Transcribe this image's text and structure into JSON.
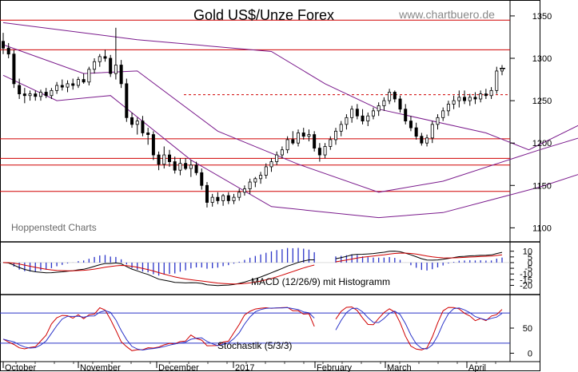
{
  "chart_data": {
    "type": "candlestick",
    "title": "Gold US$/Unze Forex",
    "watermark": "www.chartbuero.de",
    "source_label": "Hoppenstedt Charts",
    "x_labels": [
      "October",
      "November",
      "December",
      "2017",
      "February",
      "March",
      "April"
    ],
    "price_axis": {
      "ticks": [
        1100,
        1150,
        1200,
        1250,
        1300,
        1350
      ],
      "range": [
        1090,
        1365
      ],
      "resistance_lines": [
        1345,
        1310,
        1205,
        1182,
        1174,
        1143
      ],
      "dashed_line": 1257
    },
    "candles": [
      {
        "o": 1320,
        "h": 1330,
        "l": 1305,
        "c": 1312
      },
      {
        "o": 1312,
        "h": 1318,
        "l": 1300,
        "c": 1305
      },
      {
        "o": 1305,
        "h": 1310,
        "l": 1265,
        "c": 1270
      },
      {
        "o": 1268,
        "h": 1276,
        "l": 1252,
        "c": 1258
      },
      {
        "o": 1258,
        "h": 1265,
        "l": 1247,
        "c": 1256
      },
      {
        "o": 1256,
        "h": 1262,
        "l": 1250,
        "c": 1258
      },
      {
        "o": 1258,
        "h": 1262,
        "l": 1250,
        "c": 1255
      },
      {
        "o": 1255,
        "h": 1263,
        "l": 1250,
        "c": 1260
      },
      {
        "o": 1260,
        "h": 1265,
        "l": 1253,
        "c": 1256
      },
      {
        "o": 1256,
        "h": 1265,
        "l": 1252,
        "c": 1262
      },
      {
        "o": 1262,
        "h": 1272,
        "l": 1258,
        "c": 1268
      },
      {
        "o": 1268,
        "h": 1275,
        "l": 1262,
        "c": 1266
      },
      {
        "o": 1266,
        "h": 1274,
        "l": 1260,
        "c": 1270
      },
      {
        "o": 1270,
        "h": 1276,
        "l": 1263,
        "c": 1268
      },
      {
        "o": 1268,
        "h": 1278,
        "l": 1265,
        "c": 1275
      },
      {
        "o": 1275,
        "h": 1282,
        "l": 1270,
        "c": 1272
      },
      {
        "o": 1272,
        "h": 1290,
        "l": 1268,
        "c": 1287
      },
      {
        "o": 1287,
        "h": 1300,
        "l": 1282,
        "c": 1296
      },
      {
        "o": 1296,
        "h": 1305,
        "l": 1290,
        "c": 1302
      },
      {
        "o": 1302,
        "h": 1310,
        "l": 1296,
        "c": 1300
      },
      {
        "o": 1300,
        "h": 1304,
        "l": 1278,
        "c": 1282
      },
      {
        "o": 1282,
        "h": 1336,
        "l": 1275,
        "c": 1292
      },
      {
        "o": 1292,
        "h": 1298,
        "l": 1265,
        "c": 1270
      },
      {
        "o": 1270,
        "h": 1276,
        "l": 1225,
        "c": 1230
      },
      {
        "o": 1230,
        "h": 1236,
        "l": 1218,
        "c": 1222
      },
      {
        "o": 1222,
        "h": 1230,
        "l": 1210,
        "c": 1226
      },
      {
        "o": 1226,
        "h": 1232,
        "l": 1208,
        "c": 1212
      },
      {
        "o": 1212,
        "h": 1218,
        "l": 1198,
        "c": 1210
      },
      {
        "o": 1210,
        "h": 1214,
        "l": 1180,
        "c": 1186
      },
      {
        "o": 1186,
        "h": 1190,
        "l": 1168,
        "c": 1175
      },
      {
        "o": 1175,
        "h": 1196,
        "l": 1170,
        "c": 1186
      },
      {
        "o": 1186,
        "h": 1192,
        "l": 1172,
        "c": 1178
      },
      {
        "o": 1178,
        "h": 1184,
        "l": 1164,
        "c": 1168
      },
      {
        "o": 1168,
        "h": 1182,
        "l": 1162,
        "c": 1176
      },
      {
        "o": 1176,
        "h": 1182,
        "l": 1168,
        "c": 1170
      },
      {
        "o": 1170,
        "h": 1180,
        "l": 1160,
        "c": 1174
      },
      {
        "o": 1174,
        "h": 1178,
        "l": 1162,
        "c": 1165
      },
      {
        "o": 1165,
        "h": 1170,
        "l": 1145,
        "c": 1150
      },
      {
        "o": 1150,
        "h": 1154,
        "l": 1124,
        "c": 1130
      },
      {
        "o": 1130,
        "h": 1140,
        "l": 1125,
        "c": 1136
      },
      {
        "o": 1136,
        "h": 1142,
        "l": 1128,
        "c": 1132
      },
      {
        "o": 1132,
        "h": 1140,
        "l": 1126,
        "c": 1138
      },
      {
        "o": 1138,
        "h": 1142,
        "l": 1128,
        "c": 1132
      },
      {
        "o": 1132,
        "h": 1140,
        "l": 1128,
        "c": 1136
      },
      {
        "o": 1136,
        "h": 1146,
        "l": 1132,
        "c": 1142
      },
      {
        "o": 1142,
        "h": 1150,
        "l": 1138,
        "c": 1146
      },
      {
        "o": 1146,
        "h": 1158,
        "l": 1140,
        "c": 1154
      },
      {
        "o": 1154,
        "h": 1160,
        "l": 1148,
        "c": 1158
      },
      {
        "o": 1158,
        "h": 1166,
        "l": 1152,
        "c": 1162
      },
      {
        "o": 1162,
        "h": 1176,
        "l": 1158,
        "c": 1172
      },
      {
        "o": 1172,
        "h": 1182,
        "l": 1166,
        "c": 1178
      },
      {
        "o": 1178,
        "h": 1190,
        "l": 1174,
        "c": 1186
      },
      {
        "o": 1186,
        "h": 1196,
        "l": 1182,
        "c": 1192
      },
      {
        "o": 1192,
        "h": 1208,
        "l": 1188,
        "c": 1204
      },
      {
        "o": 1204,
        "h": 1214,
        "l": 1198,
        "c": 1200
      },
      {
        "o": 1200,
        "h": 1216,
        "l": 1196,
        "c": 1212
      },
      {
        "o": 1212,
        "h": 1218,
        "l": 1204,
        "c": 1208
      },
      {
        "o": 1208,
        "h": 1216,
        "l": 1202,
        "c": 1210
      },
      {
        "o": 1210,
        "h": 1214,
        "l": 1190,
        "c": 1194
      },
      {
        "o": 1194,
        "h": 1200,
        "l": 1178,
        "c": 1186
      },
      {
        "o": 1186,
        "h": 1200,
        "l": 1182,
        "c": 1196
      },
      {
        "o": 1196,
        "h": 1208,
        "l": 1192,
        "c": 1204
      },
      {
        "o": 1204,
        "h": 1218,
        "l": 1198,
        "c": 1214
      },
      {
        "o": 1214,
        "h": 1226,
        "l": 1208,
        "c": 1222
      },
      {
        "o": 1222,
        "h": 1234,
        "l": 1216,
        "c": 1230
      },
      {
        "o": 1230,
        "h": 1244,
        "l": 1224,
        "c": 1240
      },
      {
        "o": 1240,
        "h": 1246,
        "l": 1228,
        "c": 1232
      },
      {
        "o": 1232,
        "h": 1240,
        "l": 1222,
        "c": 1226
      },
      {
        "o": 1226,
        "h": 1236,
        "l": 1220,
        "c": 1232
      },
      {
        "o": 1232,
        "h": 1242,
        "l": 1228,
        "c": 1238
      },
      {
        "o": 1238,
        "h": 1248,
        "l": 1232,
        "c": 1244
      },
      {
        "o": 1244,
        "h": 1254,
        "l": 1238,
        "c": 1250
      },
      {
        "o": 1250,
        "h": 1264,
        "l": 1246,
        "c": 1260
      },
      {
        "o": 1260,
        "h": 1262,
        "l": 1248,
        "c": 1252
      },
      {
        "o": 1252,
        "h": 1256,
        "l": 1236,
        "c": 1240
      },
      {
        "o": 1240,
        "h": 1246,
        "l": 1222,
        "c": 1226
      },
      {
        "o": 1226,
        "h": 1232,
        "l": 1214,
        "c": 1218
      },
      {
        "o": 1218,
        "h": 1224,
        "l": 1204,
        "c": 1208
      },
      {
        "o": 1208,
        "h": 1212,
        "l": 1197,
        "c": 1200
      },
      {
        "o": 1200,
        "h": 1210,
        "l": 1196,
        "c": 1206
      },
      {
        "o": 1206,
        "h": 1226,
        "l": 1200,
        "c": 1222
      },
      {
        "o": 1222,
        "h": 1234,
        "l": 1216,
        "c": 1230
      },
      {
        "o": 1230,
        "h": 1242,
        "l": 1226,
        "c": 1238
      },
      {
        "o": 1238,
        "h": 1250,
        "l": 1232,
        "c": 1246
      },
      {
        "o": 1246,
        "h": 1256,
        "l": 1240,
        "c": 1250
      },
      {
        "o": 1250,
        "h": 1262,
        "l": 1242,
        "c": 1254
      },
      {
        "o": 1254,
        "h": 1262,
        "l": 1246,
        "c": 1250
      },
      {
        "o": 1250,
        "h": 1258,
        "l": 1244,
        "c": 1254
      },
      {
        "o": 1254,
        "h": 1260,
        "l": 1246,
        "c": 1252
      },
      {
        "o": 1252,
        "h": 1262,
        "l": 1248,
        "c": 1258
      },
      {
        "o": 1258,
        "h": 1264,
        "l": 1252,
        "c": 1256
      },
      {
        "o": 1256,
        "h": 1266,
        "l": 1252,
        "c": 1262
      },
      {
        "o": 1262,
        "h": 1290,
        "l": 1258,
        "c": 1285
      },
      {
        "o": 1285,
        "h": 1292,
        "l": 1280,
        "c": 1288
      }
    ],
    "bollinger": {
      "upper": [
        [
          0,
          1342
        ],
        [
          25,
          1322
        ],
        [
          50,
          1308
        ],
        [
          60,
          1270
        ],
        [
          70,
          1240
        ],
        [
          90,
          1212
        ],
        [
          98,
          1192
        ],
        [
          115,
          1245
        ],
        [
          125,
          1262
        ],
        [
          140,
          1268
        ],
        [
          150,
          1262
        ],
        [
          165,
          1264
        ],
        [
          179,
          1290
        ]
      ],
      "middle": [
        [
          0,
          1316
        ],
        [
          15,
          1282
        ],
        [
          25,
          1285
        ],
        [
          40,
          1214
        ],
        [
          55,
          1175
        ],
        [
          70,
          1142
        ],
        [
          82,
          1155
        ],
        [
          100,
          1192
        ],
        [
          125,
          1240
        ],
        [
          140,
          1248
        ],
        [
          150,
          1215
        ],
        [
          158,
          1235
        ],
        [
          179,
          1256
        ]
      ],
      "lower": [
        [
          0,
          1280
        ],
        [
          10,
          1250
        ],
        [
          20,
          1256
        ],
        [
          35,
          1180
        ],
        [
          50,
          1125
        ],
        [
          70,
          1112
        ],
        [
          82,
          1118
        ],
        [
          100,
          1148
        ],
        [
          125,
          1200
        ],
        [
          140,
          1218
        ],
        [
          150,
          1178
        ],
        [
          162,
          1190
        ],
        [
          179,
          1228
        ]
      ]
    },
    "macd": {
      "label": "MACD (12/26/9) mit Histogramm",
      "ticks": [
        10,
        5,
        0,
        -5,
        -10,
        -15,
        -20
      ],
      "range": [
        -26,
        14
      ]
    },
    "stochastik": {
      "label": "Stochastik (5/3/3)",
      "ticks": [
        50,
        0
      ],
      "range": [
        -12,
        112
      ],
      "lines": [
        80,
        20
      ]
    }
  }
}
